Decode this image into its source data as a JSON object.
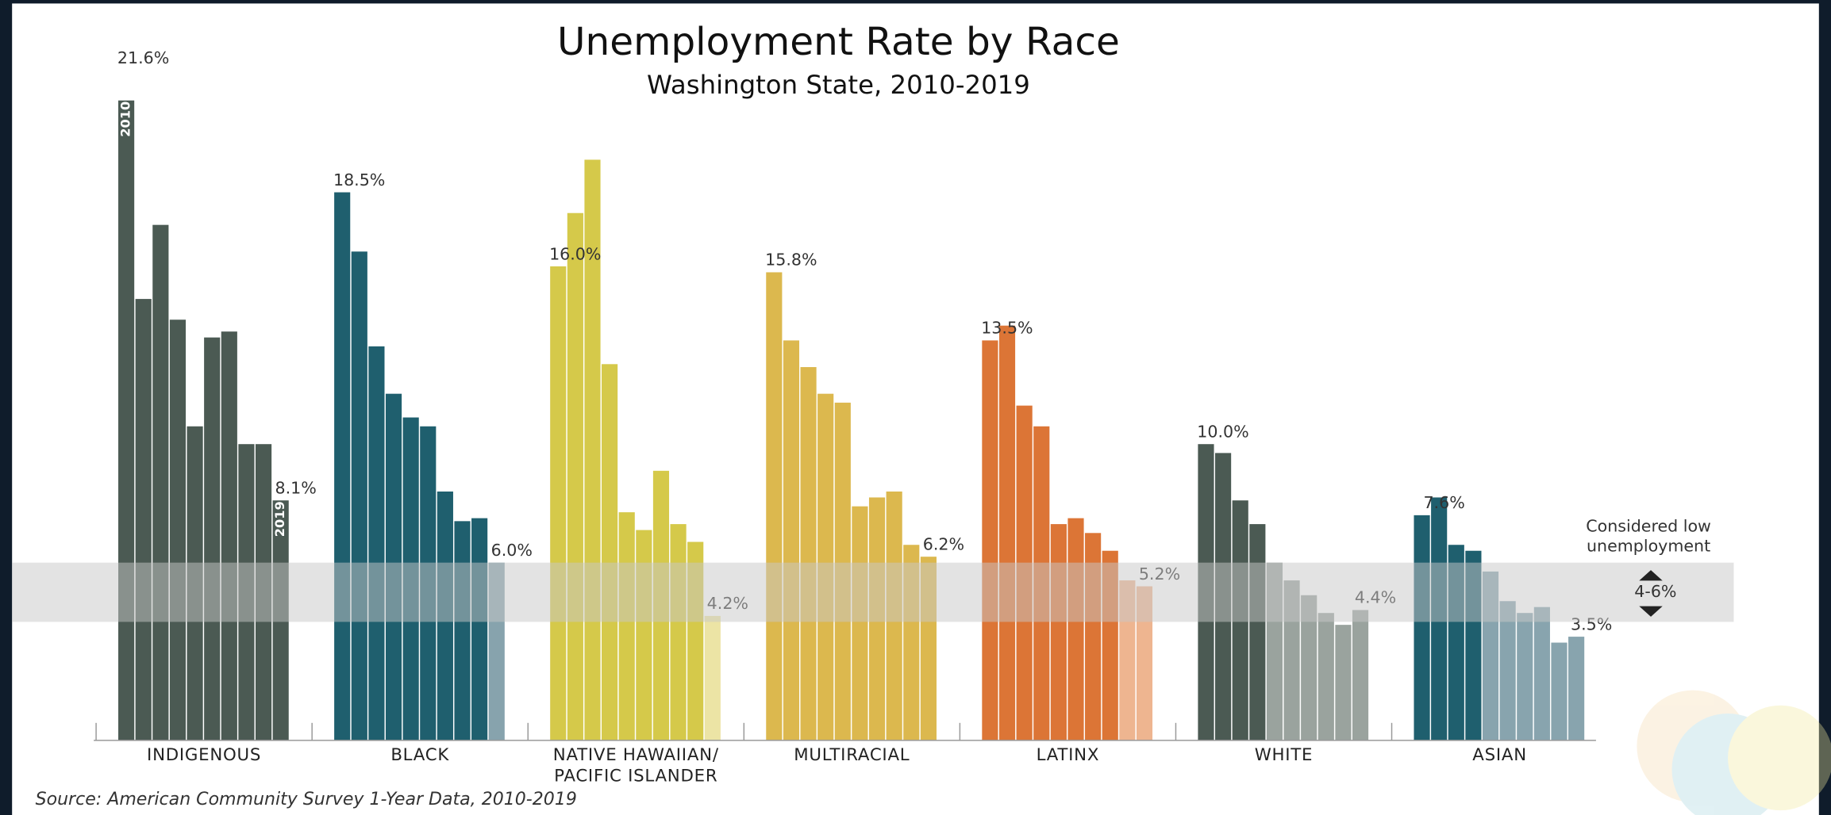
{
  "chart_data": {
    "type": "grouped-bar",
    "title": "Unemployment Rate by Race",
    "subtitle": "Washington State, 2010-2019",
    "source": "Source: American Community Survey 1-Year Data, 2010-2019",
    "first_year_label": 2010,
    "last_year_label": 2019,
    "ylim": [
      0,
      22
    ],
    "band": {
      "label": "Considered low\nunemployment",
      "range_label": "4-6%",
      "range": [
        4,
        6
      ]
    },
    "groups": [
      {
        "name": "INDIGENOUS",
        "color": "#4b5a53",
        "light_color": "#8e9993",
        "values": [
          21.6,
          14.9,
          17.4,
          14.2,
          10.6,
          13.6,
          13.8,
          10.0,
          10.0,
          8.1
        ],
        "value_labels": [
          "21.6%",
          null,
          null,
          null,
          null,
          null,
          null,
          null,
          null,
          "8.1%"
        ]
      },
      {
        "name": "BLACK",
        "color": "#1f5f6e",
        "light_color": "#87a3ad",
        "values": [
          18.5,
          16.5,
          13.3,
          11.7,
          10.9,
          10.6,
          8.4,
          7.4,
          7.5,
          6.0
        ],
        "value_labels": [
          "18.5%",
          null,
          null,
          null,
          null,
          null,
          null,
          null,
          null,
          "6.0%"
        ]
      },
      {
        "name": "NATIVE HAWAIIAN/\nPACIFIC ISLANDER",
        "color": "#d5c94a",
        "light_color": "#ece4a5",
        "values": [
          16.0,
          17.8,
          19.6,
          12.7,
          7.7,
          7.1,
          9.1,
          7.3,
          6.7,
          4.2
        ],
        "value_labels": [
          "16.0%",
          null,
          null,
          null,
          null,
          null,
          null,
          null,
          null,
          "4.2%"
        ]
      },
      {
        "name": "MULTIRACIAL",
        "color": "#dcb84e",
        "light_color": "#ecd79a",
        "values": [
          15.8,
          13.5,
          12.6,
          11.7,
          11.4,
          7.9,
          8.2,
          8.4,
          6.6,
          6.2
        ],
        "value_labels": [
          "15.8%",
          null,
          null,
          null,
          null,
          null,
          null,
          null,
          null,
          "6.2%"
        ]
      },
      {
        "name": "LATINX",
        "color": "#dc7536",
        "light_color": "#eeb590",
        "values": [
          13.5,
          14.0,
          11.3,
          10.6,
          7.3,
          7.5,
          7.0,
          6.4,
          5.4,
          5.2
        ],
        "value_labels": [
          "13.5%",
          null,
          null,
          null,
          null,
          null,
          null,
          null,
          null,
          "5.2%"
        ]
      },
      {
        "name": "WHITE",
        "color": "#4b5a53",
        "light_color": "#9aa39e",
        "values": [
          10.0,
          9.7,
          8.1,
          7.3,
          6.0,
          5.4,
          4.9,
          4.3,
          3.9,
          4.4
        ],
        "value_labels": [
          "10.0%",
          null,
          null,
          null,
          null,
          null,
          null,
          null,
          null,
          "4.4%"
        ]
      },
      {
        "name": "ASIAN",
        "color": "#1f5f6e",
        "light_color": "#88a4ae",
        "values": [
          7.6,
          8.2,
          6.6,
          6.4,
          5.7,
          4.7,
          4.3,
          4.5,
          3.3,
          3.5
        ],
        "value_labels": [
          "7.6%",
          null,
          null,
          null,
          null,
          null,
          null,
          null,
          null,
          "3.5%"
        ]
      }
    ]
  }
}
